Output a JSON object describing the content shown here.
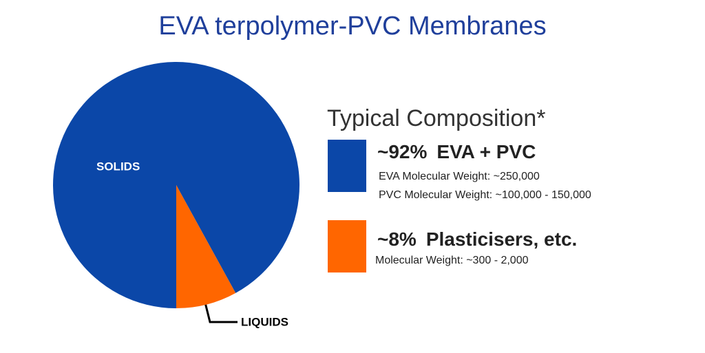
{
  "chart_data": {
    "type": "pie",
    "title": "EVA terpolymer-PVC Membranes",
    "legend_title": "Typical Composition*",
    "categories": [
      "SOLIDS",
      "LIQUIDS"
    ],
    "values": [
      92,
      8
    ],
    "value_labels": [
      "~92%",
      "~8%"
    ],
    "names": [
      "EVA + PVC",
      "Plasticisers, etc."
    ],
    "details": [
      [
        "EVA Molecular Weight: ~250,000",
        "PVC Molecular Weight: ~100,000 - 150,000"
      ],
      [
        "Molecular Weight: ~300 - 2,000"
      ]
    ],
    "colors": [
      "#0b47a8",
      "#ff6600"
    ]
  }
}
